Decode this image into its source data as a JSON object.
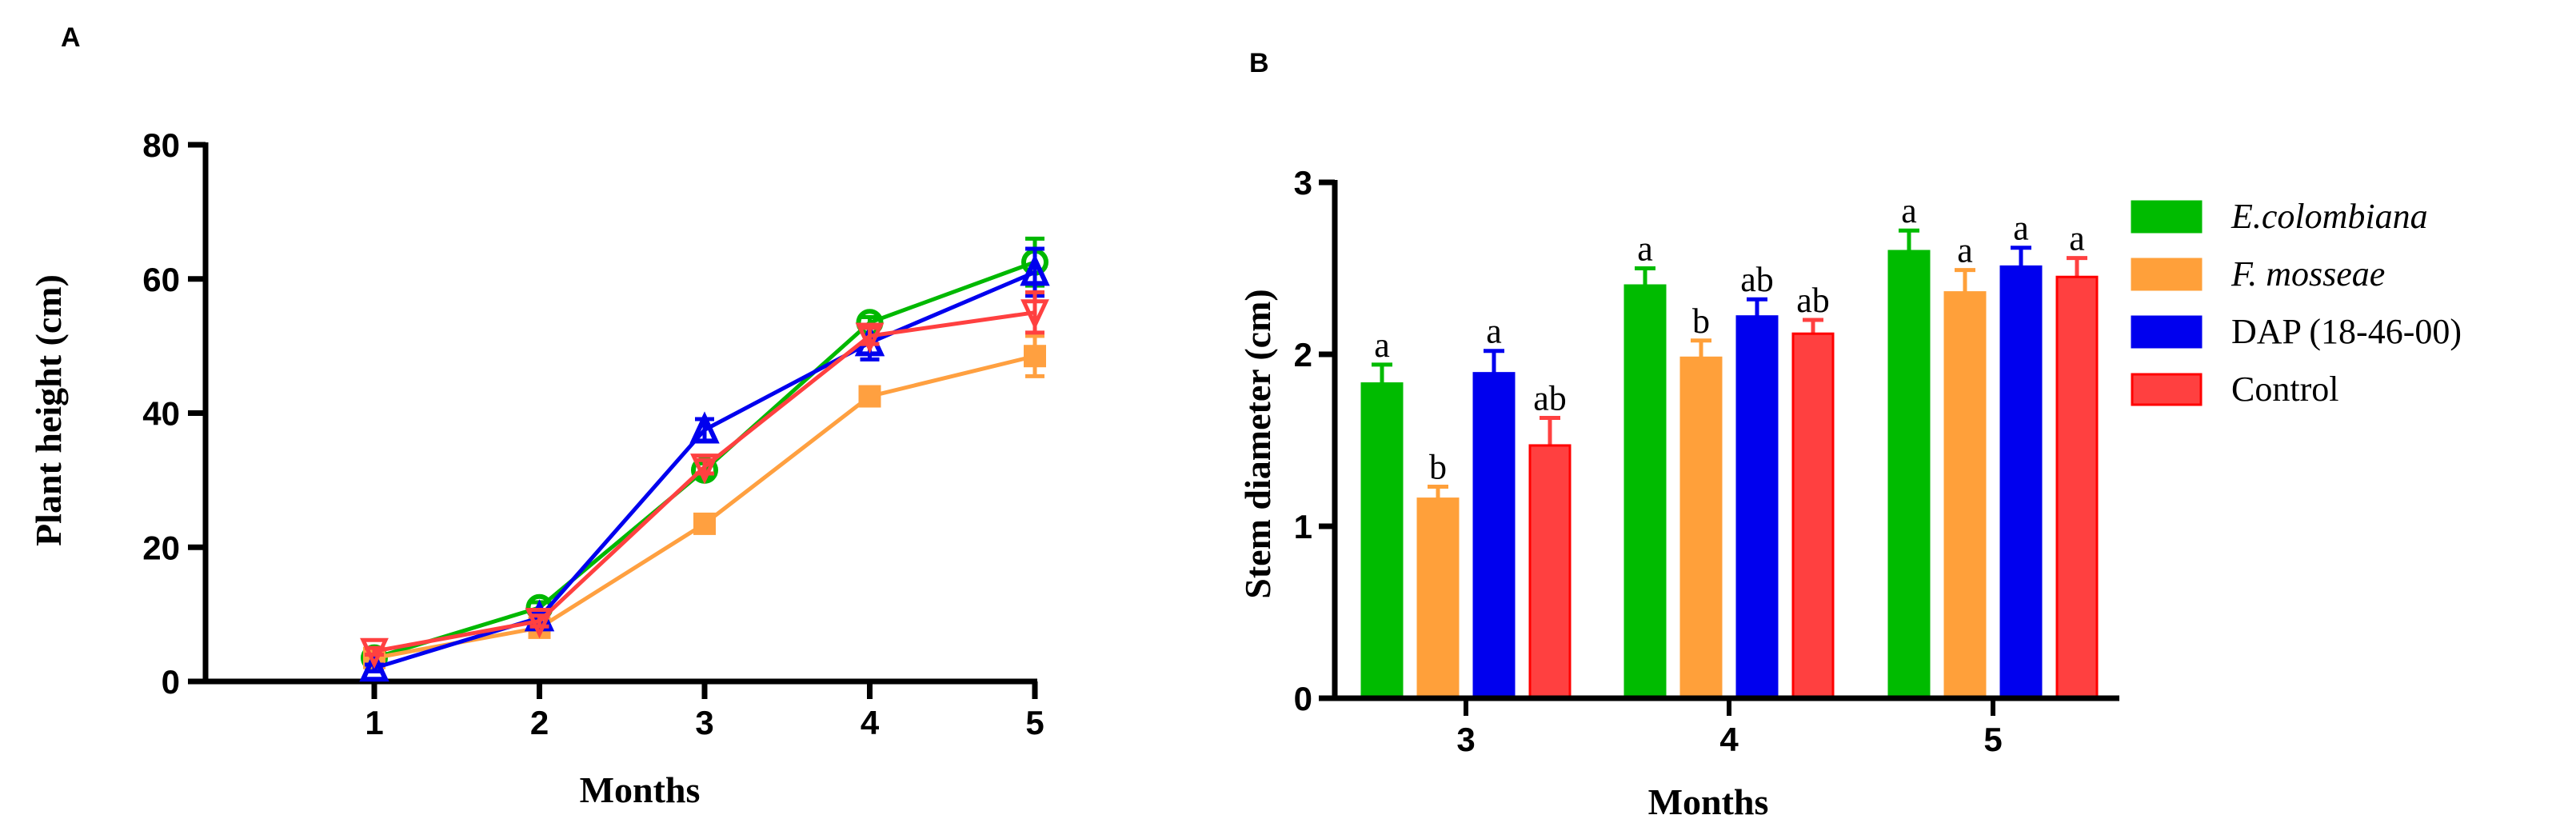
{
  "chart_data": [
    {
      "type": "line",
      "panel_label": "A",
      "title": "",
      "xlabel": "Months",
      "ylabel": "Plant height (cm)",
      "x": [
        1,
        2,
        3,
        4,
        5
      ],
      "xticks": [
        "1",
        "2",
        "3",
        "4",
        "5"
      ],
      "ylim": [
        0,
        80
      ],
      "yticks": [
        "0",
        "20",
        "40",
        "60",
        "80"
      ],
      "yticks_values": [
        0,
        20,
        40,
        60,
        80
      ],
      "grid": false,
      "series": [
        {
          "name": "E.colombiana",
          "color": "#00b800",
          "marker": "circle-open",
          "values": [
            3.5,
            11,
            31.5,
            53.5,
            62.5
          ],
          "errors": [
            0.8,
            0.8,
            1.0,
            0.8,
            3.5
          ]
        },
        {
          "name": "F. mosseae",
          "color": "#ffa040",
          "marker": "square-filled",
          "values": [
            3.5,
            8,
            23.5,
            42.5,
            48.5
          ],
          "errors": [
            0.5,
            0.6,
            0.6,
            1.2,
            3.0
          ]
        },
        {
          "name": "DAP (18-46-00)",
          "color": "#0000ee",
          "marker": "triangle-up-open",
          "values": [
            2,
            9.5,
            37.5,
            50.5,
            61
          ],
          "errors": [
            0.5,
            0.8,
            1.6,
            2.5,
            3.5
          ]
        },
        {
          "name": "Control",
          "color": "#ff4040",
          "marker": "triangle-down-open",
          "values": [
            4.5,
            9,
            32,
            51.5,
            55
          ],
          "errors": [
            0.5,
            0.8,
            1.0,
            1.2,
            3.0
          ]
        }
      ]
    },
    {
      "type": "bar",
      "panel_label": "B",
      "title": "",
      "xlabel": "Months",
      "ylabel": "Stem diameter (cm)",
      "categories": [
        "3",
        "4",
        "5"
      ],
      "ylim": [
        0,
        3
      ],
      "yticks": [
        "0",
        "1",
        "2",
        "3"
      ],
      "yticks_values": [
        0,
        1,
        2,
        3
      ],
      "grid": false,
      "legend_position": "right",
      "series": [
        {
          "name": "E.colombiana",
          "italic": true,
          "color": "#00bb00",
          "values": [
            1.83,
            2.4,
            2.6
          ],
          "errors": [
            0.11,
            0.1,
            0.12
          ],
          "letters": [
            "a",
            "a",
            "a"
          ]
        },
        {
          "name": "F. mosseae",
          "italic": true,
          "color": "#ffa03a",
          "values": [
            1.16,
            1.98,
            2.36
          ],
          "errors": [
            0.07,
            0.1,
            0.13
          ],
          "letters": [
            "b",
            "b",
            "a"
          ]
        },
        {
          "name": "DAP (18-46-00)",
          "italic": false,
          "color": "#0000ee",
          "values": [
            1.89,
            2.22,
            2.51
          ],
          "errors": [
            0.13,
            0.1,
            0.11
          ],
          "letters": [
            "a",
            "ab",
            "a"
          ]
        },
        {
          "name": "Control",
          "italic": false,
          "color": "#ff4040",
          "values": [
            1.47,
            2.12,
            2.45
          ],
          "errors": [
            0.16,
            0.08,
            0.11
          ],
          "letters": [
            "ab",
            "ab",
            "a"
          ]
        }
      ]
    }
  ]
}
